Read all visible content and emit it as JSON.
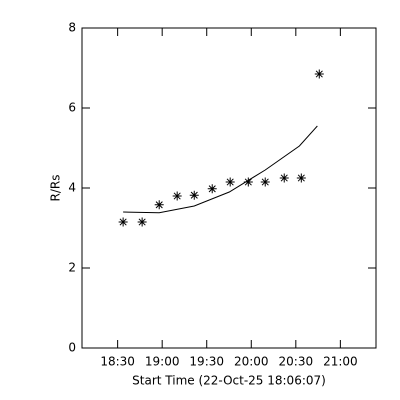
{
  "chart_data": {
    "type": "scatter",
    "ylabel": "R/Rs",
    "xlabel": "Start Time (22-Oct-25 18:06:07)",
    "xlim": [
      6,
      204
    ],
    "ylim": [
      0,
      8
    ],
    "xticks": [
      {
        "value": 30,
        "label": "18:30"
      },
      {
        "value": 60,
        "label": "19:00"
      },
      {
        "value": 90,
        "label": "19:30"
      },
      {
        "value": 120,
        "label": "20:00"
      },
      {
        "value": 150,
        "label": "20:30"
      },
      {
        "value": 180,
        "label": "21:00"
      }
    ],
    "yticks": [
      0,
      2,
      4,
      6,
      8
    ],
    "color": "#000000",
    "series": [
      {
        "style": "asterisk",
        "x": [
          33.7,
          46.5,
          58,
          70.1,
          81.6,
          93.7,
          105.8,
          118,
          129.4,
          142.2,
          153.7,
          165.8
        ],
        "values": [
          3.15,
          3.15,
          3.58,
          3.8,
          3.82,
          3.98,
          4.15,
          4.15,
          4.15,
          4.25,
          4.25,
          6.85
        ]
      },
      {
        "style": "line",
        "x": [
          33.7,
          58,
          81.6,
          105.2,
          129.4,
          152.4,
          164.5
        ],
        "values": [
          3.4,
          3.38,
          3.55,
          3.9,
          4.45,
          5.05,
          5.55
        ]
      }
    ]
  }
}
